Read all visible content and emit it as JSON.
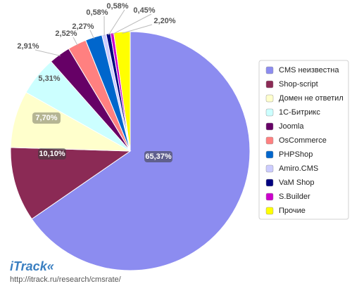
{
  "chart_data": {
    "type": "pie",
    "categories": [
      "CMS неизвестна",
      "Shop-script",
      "Домен не ответил",
      "1С-Битрикс",
      "Joomla",
      "OsCommerce",
      "PHPShop",
      "Amiro.CMS",
      "VaM Shop",
      "S.Builder",
      "Прочие"
    ],
    "values": [
      65.37,
      10.1,
      7.7,
      5.31,
      2.91,
      2.52,
      2.27,
      0.58,
      0.58,
      0.45,
      2.2
    ],
    "value_labels": [
      "65,37%",
      "10,10%",
      "7,70%",
      "5,31%",
      "2,91%",
      "2,52%",
      "2,27%",
      "0,58%",
      "0,58%",
      "0,45%",
      "2,20%"
    ],
    "colors": [
      "#8c8cf0",
      "#8b2a55",
      "#ffffcc",
      "#ccffff",
      "#660066",
      "#ff8080",
      "#0066cc",
      "#ccccff",
      "#000080",
      "#cc00cc",
      "#ffff00"
    ],
    "legend": "right",
    "source_logo": "iTrack«",
    "source_url": "http://itrack.ru/research/cmsrate/"
  }
}
